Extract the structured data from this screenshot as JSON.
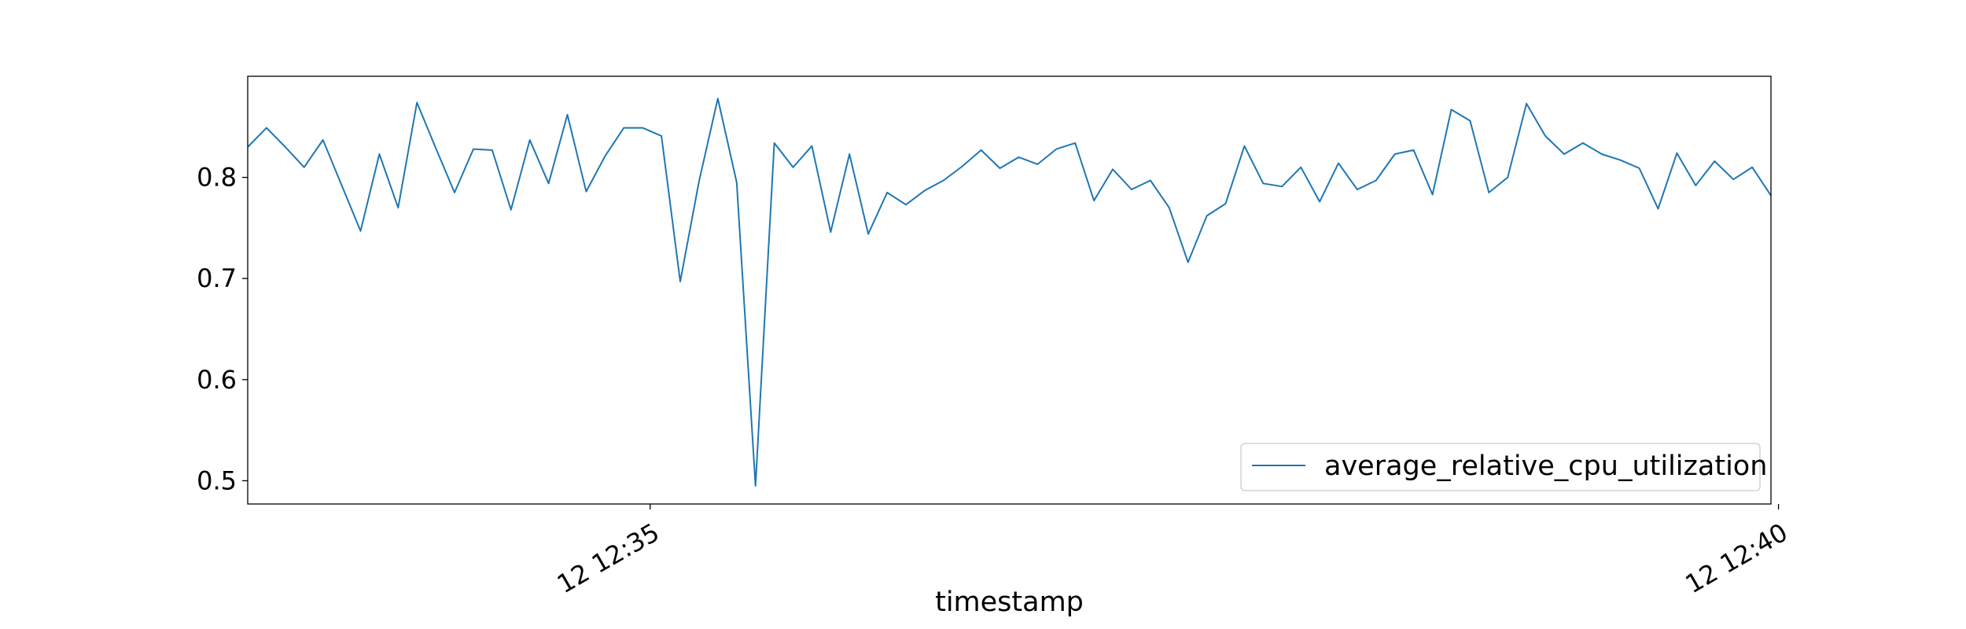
{
  "chart_data": {
    "type": "line",
    "title": "",
    "xlabel": "timestamp",
    "ylabel": "",
    "x_start": "12:33:13",
    "x_step_seconds": 5,
    "x_ticks": [
      {
        "time": "12:35:00",
        "label": "12 12:35"
      },
      {
        "time": "12:40:00",
        "label": "12 12:40"
      }
    ],
    "y_ticks": [
      0.5,
      0.6,
      0.7,
      0.8
    ],
    "ylim": [
      0.477,
      0.9
    ],
    "grid": false,
    "legend_position": "lower-right",
    "series": [
      {
        "name": "average_relative_cpu_utilization",
        "color": "#1f77b4",
        "values": [
          0.83,
          0.849,
          0.83,
          0.81,
          0.837,
          0.792,
          0.747,
          0.823,
          0.77,
          0.874,
          0.829,
          0.785,
          0.828,
          0.827,
          0.768,
          0.837,
          0.794,
          0.862,
          0.786,
          0.821,
          0.849,
          0.849,
          0.841,
          0.697,
          0.796,
          0.878,
          0.795,
          0.495,
          0.834,
          0.81,
          0.831,
          0.746,
          0.823,
          0.744,
          0.785,
          0.773,
          0.787,
          0.797,
          0.811,
          0.827,
          0.809,
          0.82,
          0.813,
          0.828,
          0.834,
          0.777,
          0.808,
          0.788,
          0.797,
          0.77,
          0.716,
          0.762,
          0.774,
          0.831,
          0.794,
          0.791,
          0.81,
          0.776,
          0.814,
          0.788,
          0.797,
          0.823,
          0.827,
          0.783,
          0.867,
          0.856,
          0.785,
          0.8,
          0.873,
          0.841,
          0.823,
          0.834,
          0.823,
          0.817,
          0.809,
          0.769,
          0.824,
          0.792,
          0.816,
          0.798,
          0.81,
          0.782
        ]
      }
    ]
  }
}
